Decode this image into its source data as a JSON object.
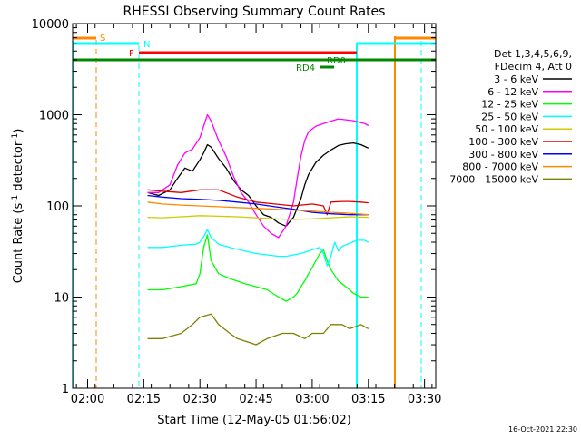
{
  "chart_data": {
    "type": "line",
    "title": "RHESSI Observing Summary Count Rates",
    "xlabel": "Start Time (12-May-05 01:56:02)",
    "ylabel_main": "Count Rate (s",
    "ylabel_sup1": "-1",
    "ylabel_mid": " detector",
    "ylabel_sup2": "-1",
    "ylabel_end": ")",
    "y_scale": "log",
    "ylim": [
      1,
      10000
    ],
    "xlim_minutes": [
      116,
      213
    ],
    "x_ticks": [
      {
        "minute": 120,
        "label": "02:00"
      },
      {
        "minute": 135,
        "label": "02:15"
      },
      {
        "minute": 150,
        "label": "02:30"
      },
      {
        "minute": 165,
        "label": "02:45"
      },
      {
        "minute": 180,
        "label": "03:00"
      },
      {
        "minute": 195,
        "label": "03:15"
      },
      {
        "minute": 210,
        "label": "03:30"
      }
    ],
    "y_ticks": [
      {
        "value": 1,
        "label": "1"
      },
      {
        "value": 10,
        "label": "10"
      },
      {
        "value": 100,
        "label": "100"
      },
      {
        "value": 1000,
        "label": "1000"
      },
      {
        "value": 10000,
        "label": "10000"
      }
    ],
    "legend_header": [
      "Det 1,3,4,5,6,9,",
      "FDecim 4, Att 0"
    ],
    "legend_placement": "right",
    "series": [
      {
        "name": "3 - 6 keV",
        "color": "#000000",
        "x": [
          136,
          139,
          142,
          144,
          146,
          148,
          150,
          151,
          152,
          153,
          155,
          157,
          159,
          161,
          163,
          165,
          167,
          169,
          171,
          173,
          175,
          177,
          178,
          179,
          181,
          183,
          185,
          187,
          189,
          191,
          193,
          194,
          195
        ],
        "y": [
          140,
          130,
          150,
          200,
          260,
          240,
          320,
          380,
          470,
          440,
          330,
          260,
          190,
          150,
          130,
          100,
          80,
          75,
          65,
          60,
          75,
          120,
          170,
          220,
          300,
          360,
          410,
          460,
          480,
          490,
          470,
          450,
          430
        ]
      },
      {
        "name": "6 - 12 keV",
        "color": "#ff00ff",
        "x": [
          136,
          139,
          142,
          144,
          146,
          148,
          150,
          151,
          152,
          153,
          155,
          157,
          159,
          161,
          163,
          165,
          167,
          169,
          171,
          173,
          175,
          176,
          177,
          178,
          179,
          181,
          183,
          185,
          187,
          189,
          191,
          193,
          194,
          195
        ],
        "y": [
          140,
          140,
          170,
          280,
          380,
          420,
          560,
          750,
          1000,
          850,
          520,
          350,
          210,
          140,
          110,
          80,
          60,
          50,
          45,
          60,
          110,
          200,
          350,
          520,
          650,
          750,
          800,
          850,
          900,
          880,
          860,
          820,
          800,
          760
        ]
      },
      {
        "name": "12 - 25 keV",
        "color": "#00ff00",
        "x": [
          136,
          140,
          145,
          149,
          150,
          151,
          152,
          153,
          155,
          158,
          162,
          165,
          168,
          171,
          173,
          175,
          176,
          177,
          178,
          179,
          180,
          181,
          182,
          183,
          184,
          185,
          187,
          189,
          191,
          193,
          194,
          195
        ],
        "y": [
          12,
          12,
          13,
          14,
          18,
          35,
          48,
          25,
          18,
          16,
          14,
          13,
          12,
          10,
          9,
          10,
          11,
          13,
          15,
          18,
          21,
          25,
          30,
          33,
          25,
          20,
          15,
          13,
          11,
          10,
          10,
          10
        ]
      },
      {
        "name": "25 - 50 keV",
        "color": "#00ffff",
        "x": [
          136,
          140,
          145,
          149,
          150,
          151,
          152,
          153,
          155,
          158,
          162,
          165,
          168,
          171,
          173,
          175,
          177,
          179,
          181,
          182,
          183,
          184,
          185,
          186,
          187,
          188,
          190,
          192,
          194,
          195
        ],
        "y": [
          35,
          35,
          37,
          38,
          40,
          46,
          55,
          45,
          38,
          35,
          32,
          30,
          29,
          28,
          28,
          29,
          30,
          32,
          34,
          35,
          30,
          22,
          28,
          40,
          32,
          36,
          39,
          42,
          42,
          40
        ]
      },
      {
        "name": "50 - 100 keV",
        "color": "#cccc00",
        "x": [
          136,
          140,
          145,
          150,
          155,
          160,
          165,
          170,
          175,
          180,
          185,
          190,
          195
        ],
        "y": [
          75,
          74,
          76,
          78,
          77,
          76,
          74,
          72,
          71,
          72,
          74,
          76,
          75
        ]
      },
      {
        "name": "100 - 300 keV",
        "color": "#dd0000",
        "x": [
          136,
          140,
          145,
          150,
          155,
          160,
          165,
          170,
          175,
          180,
          183,
          184,
          185,
          188,
          190,
          193,
          195
        ],
        "y": [
          150,
          145,
          140,
          150,
          150,
          125,
          110,
          105,
          100,
          105,
          100,
          80,
          110,
          112,
          112,
          110,
          108
        ]
      },
      {
        "name": "300 - 800 keV",
        "color": "#0000ff",
        "x": [
          136,
          140,
          145,
          150,
          155,
          160,
          165,
          170,
          175,
          180,
          185,
          190,
          195
        ],
        "y": [
          130,
          125,
          120,
          118,
          115,
          110,
          105,
          98,
          92,
          85,
          82,
          80,
          80
        ]
      },
      {
        "name": "800 - 7000 keV",
        "color": "#ff8800",
        "x": [
          136,
          140,
          145,
          150,
          155,
          160,
          165,
          170,
          175,
          180,
          185,
          190,
          195
        ],
        "y": [
          110,
          105,
          102,
          100,
          98,
          96,
          94,
          92,
          90,
          88,
          85,
          83,
          80
        ]
      },
      {
        "name": "7000 - 15000 keV",
        "color": "#808000",
        "x": [
          136,
          140,
          145,
          148,
          150,
          153,
          155,
          158,
          160,
          165,
          168,
          172,
          175,
          178,
          180,
          183,
          185,
          188,
          190,
          193,
          195
        ],
        "y": [
          3.5,
          3.5,
          4,
          5,
          6,
          6.5,
          5,
          4,
          3.5,
          3,
          3.5,
          4,
          4,
          3.5,
          4,
          4,
          5,
          5,
          4.5,
          5,
          4.5
        ]
      }
    ],
    "annotations": [
      {
        "text": "S",
        "color": "#ff8800"
      },
      {
        "text": "N",
        "color": "#00ffff"
      },
      {
        "text": "F",
        "color": "#ff0000"
      },
      {
        "text": "RD0",
        "color": "#008800"
      },
      {
        "text": "RD4",
        "color": "#008800"
      }
    ],
    "timestamp": "16-Oct-2021 22:30"
  }
}
